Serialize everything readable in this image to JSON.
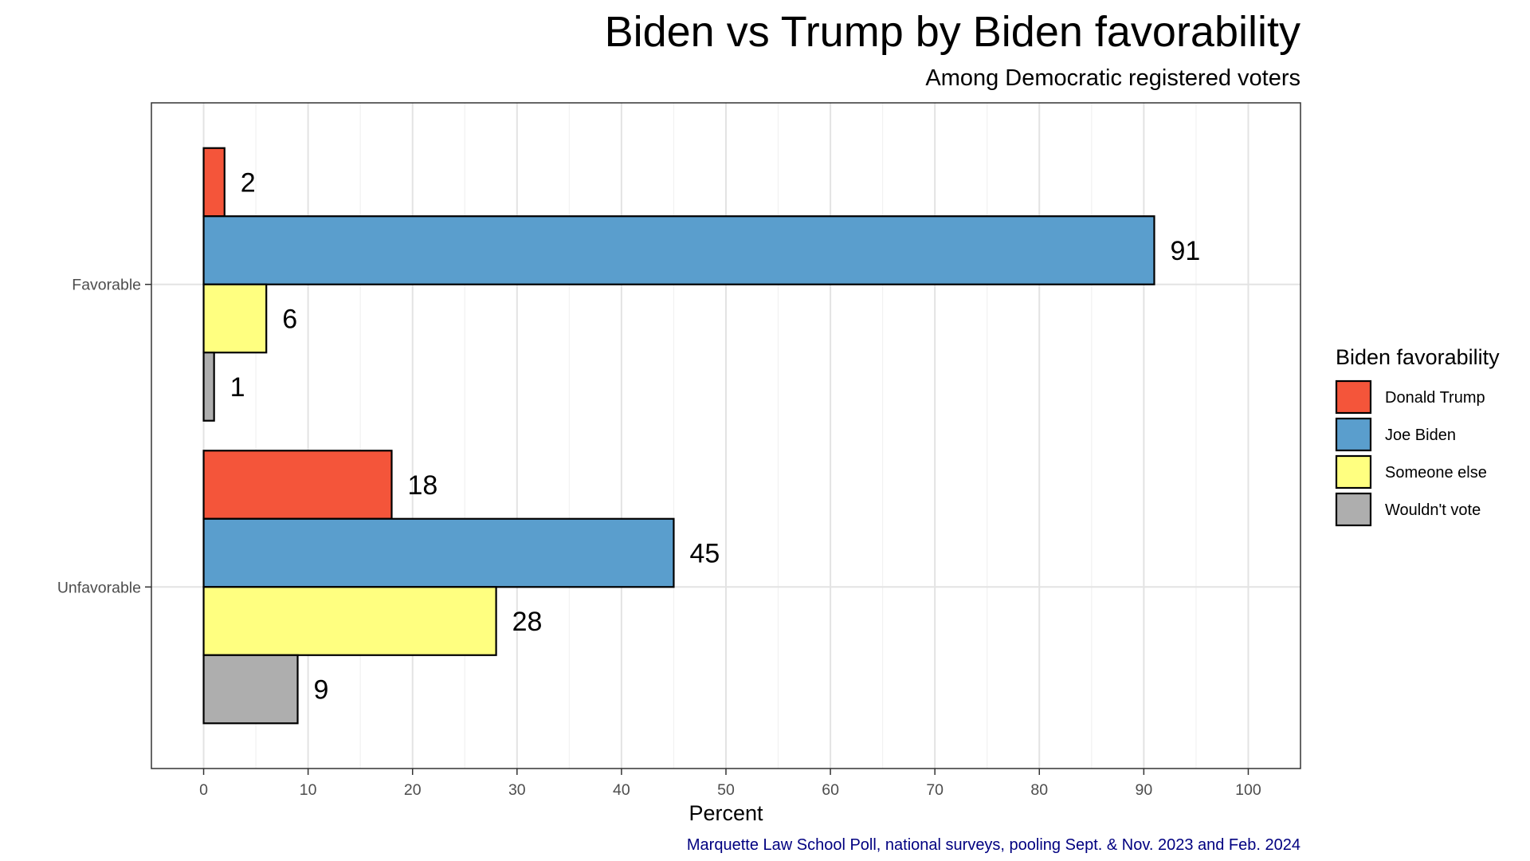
{
  "title": "Biden vs Trump by Biden favorability",
  "subtitle": "Among Democratic registered voters",
  "caption": "Marquette Law School Poll, national surveys, pooling Sept. & Nov. 2023 and Feb. 2024",
  "chart_data": {
    "type": "bar",
    "orientation": "horizontal",
    "xlabel": "Percent",
    "ylabel": "",
    "xlim": [
      -5,
      105
    ],
    "xticks": [
      0,
      10,
      20,
      30,
      40,
      50,
      60,
      70,
      80,
      90,
      100
    ],
    "grid": true,
    "legend_title": "Biden favorability",
    "legend_position": "right",
    "categories": [
      "Favorable",
      "Unfavorable"
    ],
    "series": [
      {
        "name": "Donald Trump",
        "color": "#F4553A",
        "values": [
          2,
          18
        ]
      },
      {
        "name": "Joe Biden",
        "color": "#5A9ECD",
        "values": [
          91,
          45
        ]
      },
      {
        "name": "Someone else",
        "color": "#FFFF80",
        "values": [
          6,
          28
        ]
      },
      {
        "name": "Wouldn't vote",
        "color": "#AEAEAE",
        "values": [
          1,
          9
        ]
      }
    ]
  }
}
